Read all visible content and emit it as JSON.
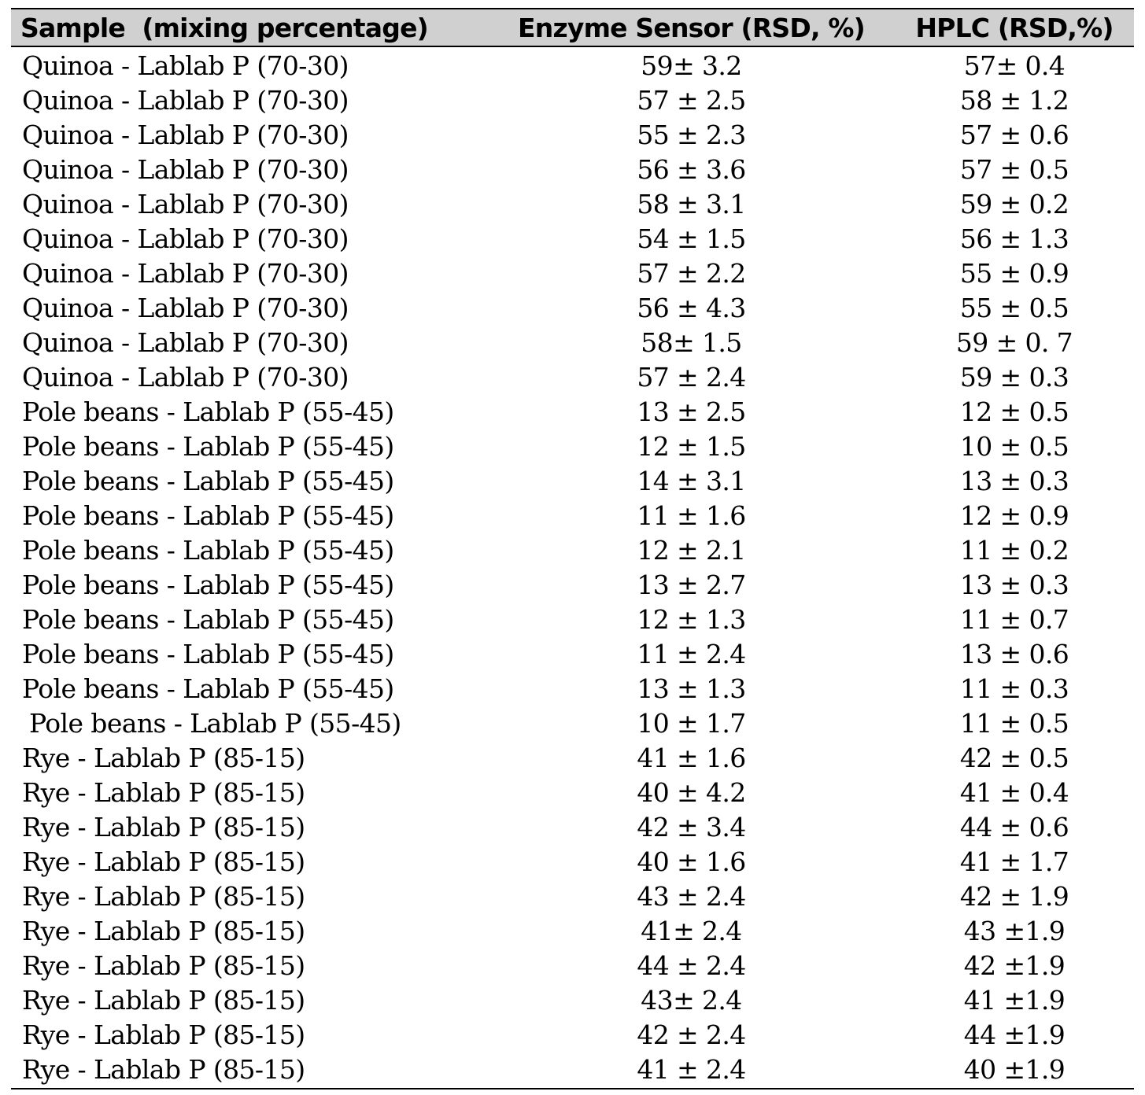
{
  "table": {
    "headers": [
      "Sample  (mixing percentage)",
      "Enzyme Sensor (RSD, %)",
      "HPLC (RSD,%)"
    ],
    "rows": [
      [
        "Quinoa - Lablab P (70-30)",
        "59± 3.2",
        "57± 0.4"
      ],
      [
        "Quinoa - Lablab P (70-30)",
        "57 ± 2.5",
        "58 ± 1.2"
      ],
      [
        "Quinoa - Lablab P (70-30)",
        "55 ± 2.3",
        "57 ± 0.6"
      ],
      [
        "Quinoa - Lablab P (70-30)",
        "56 ± 3.6",
        "57 ± 0.5"
      ],
      [
        "Quinoa - Lablab P (70-30)",
        "58 ± 3.1",
        "59 ± 0.2"
      ],
      [
        "Quinoa - Lablab P (70-30)",
        "54 ± 1.5",
        "56 ± 1.3"
      ],
      [
        "Quinoa - Lablab P (70-30)",
        "57 ± 2.2",
        "55 ± 0.9"
      ],
      [
        "Quinoa - Lablab P (70-30)",
        "56 ± 4.3",
        "55 ± 0.5"
      ],
      [
        "Quinoa - Lablab P (70-30)",
        "58± 1.5",
        "59 ± 0. 7"
      ],
      [
        "Quinoa - Lablab P (70-30)",
        "57 ± 2.4",
        "59 ± 0.3"
      ],
      [
        "Pole beans - Lablab P (55-45)",
        "13 ± 2.5",
        "12 ± 0.5"
      ],
      [
        "Pole beans - Lablab P (55-45)",
        "12 ± 1.5",
        "10 ± 0.5"
      ],
      [
        "Pole beans - Lablab P (55-45)",
        "14 ± 3.1",
        "13 ± 0.3"
      ],
      [
        "Pole beans - Lablab P (55-45)",
        "11 ± 1.6",
        "12 ± 0.9"
      ],
      [
        "Pole beans - Lablab P (55-45)",
        "12 ± 2.1",
        "11 ± 0.2"
      ],
      [
        "Pole beans - Lablab P (55-45)",
        "13 ± 2.7",
        "13 ± 0.3"
      ],
      [
        "Pole beans - Lablab P (55-45)",
        "12 ± 1.3",
        "11 ± 0.7"
      ],
      [
        "Pole beans - Lablab P (55-45)",
        "11 ± 2.4",
        "13 ± 0.6"
      ],
      [
        "Pole beans - Lablab P (55-45)",
        "13 ± 1.3",
        "11 ± 0.3"
      ],
      [
        "Pole beans - Lablab P (55-45)",
        "10 ± 1.7",
        "11 ± 0.5"
      ],
      [
        "Rye - Lablab P (85-15)",
        "41 ± 1.6",
        "42 ± 0.5"
      ],
      [
        "Rye - Lablab P (85-15)",
        "40 ± 4.2",
        "41 ± 0.4"
      ],
      [
        "Rye - Lablab P (85-15)",
        "42 ± 3.4",
        "44 ± 0.6"
      ],
      [
        "Rye - Lablab P (85-15)",
        "40 ± 1.6",
        "41 ± 1.7"
      ],
      [
        "Rye - Lablab P (85-15)",
        "43 ± 2.4",
        "42 ± 1.9"
      ],
      [
        "Rye - Lablab P (85-15)",
        "41± 2.4",
        "43 ±1.9"
      ],
      [
        "Rye - Lablab P (85-15)",
        "44 ± 2.4",
        "42 ±1.9"
      ],
      [
        "Rye - Lablab P (85-15)",
        "43± 2.4",
        "41 ±1.9"
      ],
      [
        "Rye - Lablab P (85-15)",
        "42 ± 2.4",
        "44 ±1.9"
      ],
      [
        "Rye - Lablab P (85-15)",
        "41 ± 2.4",
        "40 ±1.9"
      ]
    ]
  }
}
